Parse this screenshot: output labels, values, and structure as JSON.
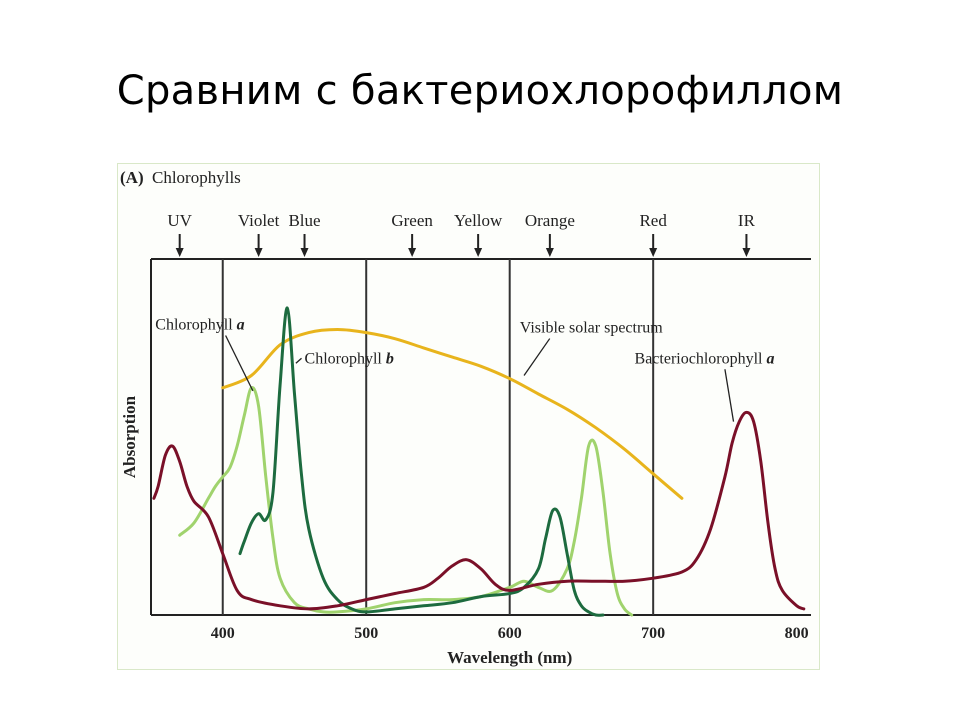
{
  "slide": {
    "title": "Сравним с бактериохлорофиллом"
  },
  "chart_data": {
    "type": "line",
    "panel_label": "(A)",
    "title": "Chlorophylls",
    "xlabel": "Wavelength (nm)",
    "ylabel": "Absorption",
    "xlim": [
      350,
      810
    ],
    "ylim": [
      0,
      1
    ],
    "x_ticks": [
      400,
      500,
      600,
      700,
      800
    ],
    "grid": false,
    "band_lines": [
      400,
      500,
      600,
      700
    ],
    "color_bands": [
      {
        "label": "UV",
        "x": 370
      },
      {
        "label": "Violet",
        "x": 425
      },
      {
        "label": "Blue",
        "x": 457
      },
      {
        "label": "Green",
        "x": 532
      },
      {
        "label": "Yellow",
        "x": 578
      },
      {
        "label": "Orange",
        "x": 628
      },
      {
        "label": "Red",
        "x": 700
      },
      {
        "label": "IR",
        "x": 765
      }
    ],
    "series": [
      {
        "name": "Visible solar spectrum",
        "color": "#e8b41c",
        "label_italic": "",
        "label_pos": {
          "x": 607,
          "y": 0.92
        },
        "pointer_to": {
          "x": 610,
          "y": 0.78
        },
        "x": [
          400,
          420,
          440,
          460,
          480,
          500,
          520,
          540,
          560,
          580,
          600,
          620,
          640,
          660,
          680,
          700,
          720
        ],
        "y": [
          0.74,
          0.78,
          0.88,
          0.92,
          0.93,
          0.92,
          0.9,
          0.87,
          0.84,
          0.81,
          0.77,
          0.72,
          0.67,
          0.61,
          0.54,
          0.46,
          0.38
        ]
      },
      {
        "name": "Chlorophyll",
        "label_italic": "a",
        "color": "#a0d36d",
        "label_pos": {
          "x": 353,
          "y": 0.93
        },
        "pointer_to": {
          "x": 421,
          "y": 0.73
        },
        "x": [
          370,
          380,
          390,
          395,
          400,
          405,
          410,
          415,
          420,
          425,
          430,
          435,
          440,
          450,
          460,
          470,
          480,
          500,
          520,
          540,
          560,
          580,
          600,
          610,
          620,
          630,
          640,
          645,
          650,
          655,
          660,
          665,
          670,
          675,
          680,
          685
        ],
        "y": [
          0.26,
          0.3,
          0.38,
          0.42,
          0.45,
          0.48,
          0.55,
          0.65,
          0.74,
          0.68,
          0.45,
          0.25,
          0.12,
          0.04,
          0.02,
          0.01,
          0.01,
          0.02,
          0.04,
          0.05,
          0.05,
          0.06,
          0.09,
          0.11,
          0.09,
          0.08,
          0.15,
          0.24,
          0.38,
          0.55,
          0.55,
          0.4,
          0.2,
          0.07,
          0.02,
          0.0
        ]
      },
      {
        "name": "Chlorophyll",
        "label_italic": "b",
        "color": "#1d6b3f",
        "label_pos": {
          "x": 457,
          "y": 0.82
        },
        "pointer_to": {
          "x": 451,
          "y": 0.82
        },
        "x": [
          412,
          415,
          420,
          425,
          430,
          435,
          440,
          445,
          450,
          455,
          460,
          470,
          480,
          490,
          500,
          520,
          540,
          560,
          580,
          600,
          610,
          620,
          625,
          630,
          635,
          640,
          645,
          650,
          655,
          660,
          665
        ],
        "y": [
          0.2,
          0.24,
          0.3,
          0.33,
          0.31,
          0.4,
          0.75,
          1.0,
          0.72,
          0.45,
          0.28,
          0.12,
          0.05,
          0.02,
          0.01,
          0.02,
          0.03,
          0.04,
          0.06,
          0.07,
          0.09,
          0.15,
          0.25,
          0.34,
          0.32,
          0.2,
          0.08,
          0.03,
          0.01,
          0.0,
          0.0
        ]
      },
      {
        "name": "Bacteriochlorophyll",
        "label_italic": "a",
        "color": "#7a1028",
        "label_pos": {
          "x": 687,
          "y": 0.82
        },
        "pointer_to": {
          "x": 756,
          "y": 0.63
        },
        "x": [
          352,
          355,
          360,
          365,
          370,
          375,
          380,
          390,
          400,
          410,
          420,
          440,
          460,
          480,
          500,
          520,
          540,
          550,
          560,
          570,
          580,
          590,
          600,
          620,
          640,
          660,
          680,
          700,
          720,
          730,
          740,
          750,
          755,
          760,
          765,
          770,
          775,
          780,
          785,
          790,
          800,
          805
        ],
        "y": [
          0.38,
          0.42,
          0.52,
          0.55,
          0.5,
          0.42,
          0.37,
          0.32,
          0.2,
          0.08,
          0.05,
          0.03,
          0.02,
          0.03,
          0.05,
          0.07,
          0.09,
          0.12,
          0.16,
          0.18,
          0.15,
          0.1,
          0.08,
          0.1,
          0.11,
          0.11,
          0.11,
          0.12,
          0.14,
          0.18,
          0.28,
          0.45,
          0.56,
          0.63,
          0.66,
          0.63,
          0.5,
          0.3,
          0.15,
          0.08,
          0.03,
          0.02
        ]
      }
    ]
  }
}
